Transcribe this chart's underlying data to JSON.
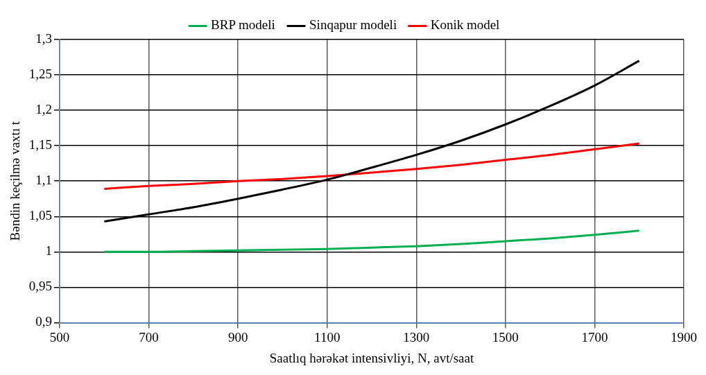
{
  "chart_data": {
    "type": "line",
    "xlabel": "Saatlıq hərəkət intensivliyi, N, avt/saat",
    "ylabel": "Bəndin keçilmə vaxtı t",
    "x": [
      600,
      700,
      800,
      900,
      1000,
      1100,
      1200,
      1300,
      1400,
      1500,
      1600,
      1700,
      1800
    ],
    "series": [
      {
        "name": "BRP modeli",
        "color": "#00b050",
        "values": [
          1.0,
          1.0,
          1.001,
          1.002,
          1.003,
          1.004,
          1.006,
          1.008,
          1.011,
          1.015,
          1.019,
          1.024,
          1.03
        ]
      },
      {
        "name": "Sinqapur modeli",
        "color": "#000000",
        "values": [
          1.043,
          1.053,
          1.063,
          1.075,
          1.088,
          1.102,
          1.119,
          1.137,
          1.157,
          1.18,
          1.206,
          1.235,
          1.27
        ]
      },
      {
        "name": "Konik model",
        "color": "#ff0000",
        "values": [
          1.089,
          1.093,
          1.096,
          1.1,
          1.103,
          1.107,
          1.112,
          1.117,
          1.123,
          1.13,
          1.137,
          1.145,
          1.153
        ]
      }
    ],
    "xlim": [
      500,
      1900
    ],
    "xticks": [
      500,
      700,
      900,
      1100,
      1300,
      1500,
      1700,
      1900
    ],
    "ylim": [
      0.9,
      1.3
    ],
    "yticks": [
      {
        "value": 0.9,
        "label": "0,9"
      },
      {
        "value": 0.95,
        "label": "0,95"
      },
      1,
      {
        "value": 1.05,
        "label": "1,05"
      },
      {
        "value": 1.1,
        "label": "1,1"
      },
      {
        "value": 1.15,
        "label": "1,15"
      },
      {
        "value": 1.2,
        "label": "1,2"
      },
      {
        "value": 1.25,
        "label": "1,25"
      },
      {
        "value": 1.3,
        "label": "1,3"
      }
    ],
    "grid": true,
    "legend": "top",
    "marker": "none",
    "line_style": "solid"
  }
}
